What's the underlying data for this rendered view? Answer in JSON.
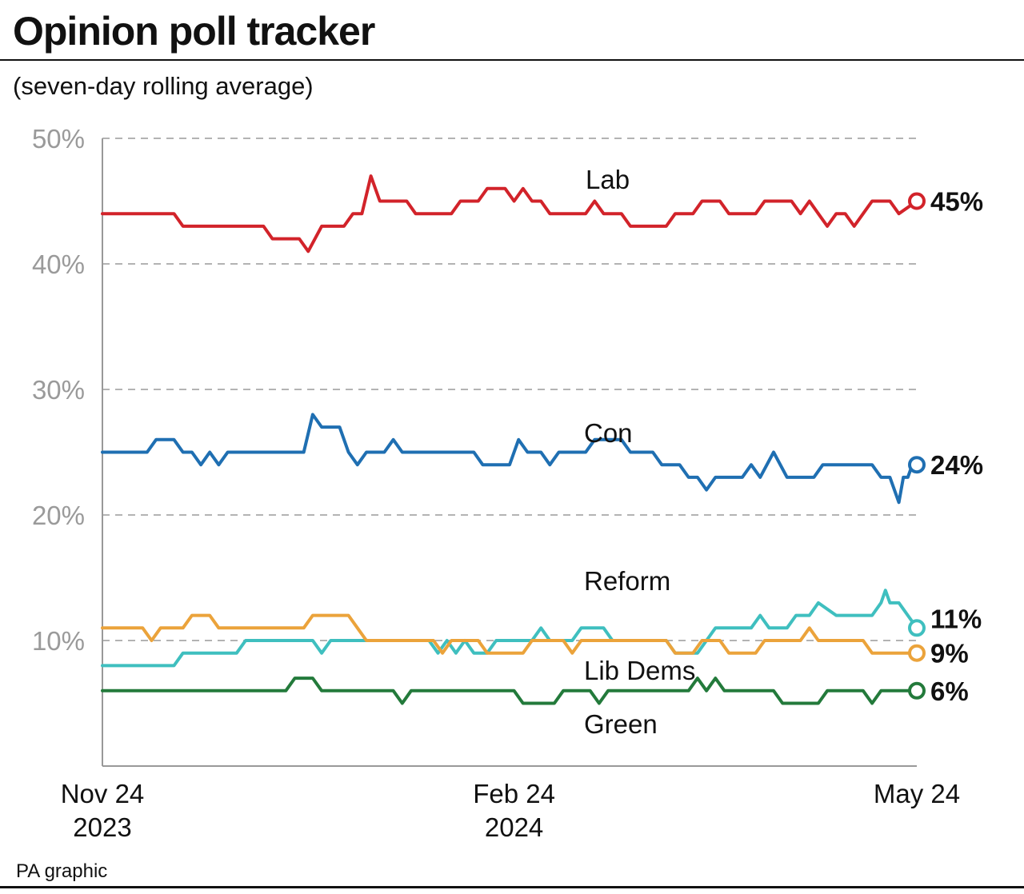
{
  "header": {
    "title": "Opinion poll tracker",
    "subtitle": "(seven-day rolling average)"
  },
  "footer": {
    "source": "PA graphic"
  },
  "chart_data": {
    "type": "line",
    "title": "Opinion poll tracker",
    "subtitle": "(seven-day rolling average)",
    "xlabel": "",
    "ylabel": "",
    "ylim": [
      0,
      50
    ],
    "xlim": [
      "2023-11-24",
      "2024-05-24"
    ],
    "grid": true,
    "yticks": [
      {
        "value": 10,
        "label": "10%"
      },
      {
        "value": 20,
        "label": "20%"
      },
      {
        "value": 30,
        "label": "30%"
      },
      {
        "value": 40,
        "label": "40%"
      },
      {
        "value": 50,
        "label": "50%"
      }
    ],
    "xticks": [
      {
        "date": "2023-11-24",
        "lines": [
          "Nov 24",
          "2023"
        ]
      },
      {
        "date": "2024-02-24",
        "lines": [
          "Feb 24",
          "2024"
        ]
      },
      {
        "date": "2024-05-24",
        "lines": [
          "May 24"
        ]
      }
    ],
    "series": [
      {
        "name": "Lab",
        "color": "#d2232a",
        "end_label": "45%",
        "points": [
          [
            "2023-11-24",
            44
          ],
          [
            "2023-12-10",
            44
          ],
          [
            "2023-12-12",
            43
          ],
          [
            "2023-12-30",
            43
          ],
          [
            "2024-01-01",
            42
          ],
          [
            "2024-01-07",
            42
          ],
          [
            "2024-01-09",
            41
          ],
          [
            "2024-01-12",
            43
          ],
          [
            "2024-01-17",
            43
          ],
          [
            "2024-01-19",
            44
          ],
          [
            "2024-01-21",
            44
          ],
          [
            "2024-01-23",
            47
          ],
          [
            "2024-01-25",
            45
          ],
          [
            "2024-01-31",
            45
          ],
          [
            "2024-02-02",
            44
          ],
          [
            "2024-02-10",
            44
          ],
          [
            "2024-02-12",
            45
          ],
          [
            "2024-02-16",
            45
          ],
          [
            "2024-02-18",
            46
          ],
          [
            "2024-02-22",
            46
          ],
          [
            "2024-02-24",
            45
          ],
          [
            "2024-02-26",
            46
          ],
          [
            "2024-02-28",
            45
          ],
          [
            "2024-03-01",
            45
          ],
          [
            "2024-03-03",
            44
          ],
          [
            "2024-03-11",
            44
          ],
          [
            "2024-03-13",
            45
          ],
          [
            "2024-03-15",
            44
          ],
          [
            "2024-03-19",
            44
          ],
          [
            "2024-03-21",
            43
          ],
          [
            "2024-03-29",
            43
          ],
          [
            "2024-03-31",
            44
          ],
          [
            "2024-04-04",
            44
          ],
          [
            "2024-04-06",
            45
          ],
          [
            "2024-04-10",
            45
          ],
          [
            "2024-04-12",
            44
          ],
          [
            "2024-04-18",
            44
          ],
          [
            "2024-04-20",
            45
          ],
          [
            "2024-04-26",
            45
          ],
          [
            "2024-04-28",
            44
          ],
          [
            "2024-04-30",
            45
          ],
          [
            "2024-05-02",
            44
          ],
          [
            "2024-05-04",
            43
          ],
          [
            "2024-05-06",
            44
          ],
          [
            "2024-05-08",
            44
          ],
          [
            "2024-05-10",
            43
          ],
          [
            "2024-05-12",
            44
          ],
          [
            "2024-05-14",
            45
          ],
          [
            "2024-05-18",
            45
          ],
          [
            "2024-05-20",
            44
          ],
          [
            "2024-05-24",
            45
          ]
        ]
      },
      {
        "name": "Con",
        "color": "#1f6fb2",
        "end_label": "24%",
        "points": [
          [
            "2023-11-24",
            25
          ],
          [
            "2023-12-04",
            25
          ],
          [
            "2023-12-06",
            26
          ],
          [
            "2023-12-10",
            26
          ],
          [
            "2023-12-12",
            25
          ],
          [
            "2023-12-14",
            25
          ],
          [
            "2023-12-16",
            24
          ],
          [
            "2023-12-18",
            25
          ],
          [
            "2023-12-20",
            24
          ],
          [
            "2023-12-22",
            25
          ],
          [
            "2024-01-08",
            25
          ],
          [
            "2024-01-10",
            28
          ],
          [
            "2024-01-12",
            27
          ],
          [
            "2024-01-16",
            27
          ],
          [
            "2024-01-18",
            25
          ],
          [
            "2024-01-20",
            24
          ],
          [
            "2024-01-22",
            25
          ],
          [
            "2024-01-26",
            25
          ],
          [
            "2024-01-28",
            26
          ],
          [
            "2024-01-30",
            25
          ],
          [
            "2024-02-15",
            25
          ],
          [
            "2024-02-17",
            24
          ],
          [
            "2024-02-23",
            24
          ],
          [
            "2024-02-25",
            26
          ],
          [
            "2024-02-27",
            25
          ],
          [
            "2024-03-01",
            25
          ],
          [
            "2024-03-03",
            24
          ],
          [
            "2024-03-05",
            25
          ],
          [
            "2024-03-11",
            25
          ],
          [
            "2024-03-13",
            26
          ],
          [
            "2024-03-19",
            26
          ],
          [
            "2024-03-21",
            25
          ],
          [
            "2024-03-26",
            25
          ],
          [
            "2024-03-28",
            24
          ],
          [
            "2024-04-01",
            24
          ],
          [
            "2024-04-03",
            23
          ],
          [
            "2024-04-05",
            23
          ],
          [
            "2024-04-07",
            22
          ],
          [
            "2024-04-09",
            23
          ],
          [
            "2024-04-15",
            23
          ],
          [
            "2024-04-17",
            24
          ],
          [
            "2024-04-19",
            23
          ],
          [
            "2024-04-22",
            25
          ],
          [
            "2024-04-25",
            23
          ],
          [
            "2024-05-01",
            23
          ],
          [
            "2024-05-03",
            24
          ],
          [
            "2024-05-14",
            24
          ],
          [
            "2024-05-16",
            23
          ],
          [
            "2024-05-18",
            23
          ],
          [
            "2024-05-20",
            21
          ],
          [
            "2024-05-21",
            23
          ],
          [
            "2024-05-22",
            23
          ],
          [
            "2024-05-23",
            24
          ],
          [
            "2024-05-24",
            24
          ]
        ]
      },
      {
        "name": "Reform",
        "color": "#3fbfbf",
        "end_label": "11%",
        "points": [
          [
            "2023-11-24",
            8
          ],
          [
            "2023-12-10",
            8
          ],
          [
            "2023-12-12",
            9
          ],
          [
            "2023-12-24",
            9
          ],
          [
            "2023-12-26",
            10
          ],
          [
            "2024-01-10",
            10
          ],
          [
            "2024-01-12",
            9
          ],
          [
            "2024-01-14",
            10
          ],
          [
            "2024-02-05",
            10
          ],
          [
            "2024-02-07",
            9
          ],
          [
            "2024-02-09",
            10
          ],
          [
            "2024-02-11",
            9
          ],
          [
            "2024-02-13",
            10
          ],
          [
            "2024-02-15",
            9
          ],
          [
            "2024-02-18",
            9
          ],
          [
            "2024-02-20",
            10
          ],
          [
            "2024-02-28",
            10
          ],
          [
            "2024-03-01",
            11
          ],
          [
            "2024-03-03",
            10
          ],
          [
            "2024-03-08",
            10
          ],
          [
            "2024-03-10",
            11
          ],
          [
            "2024-03-15",
            11
          ],
          [
            "2024-03-17",
            10
          ],
          [
            "2024-03-29",
            10
          ],
          [
            "2024-03-31",
            9
          ],
          [
            "2024-04-05",
            9
          ],
          [
            "2024-04-07",
            10
          ],
          [
            "2024-04-09",
            11
          ],
          [
            "2024-04-17",
            11
          ],
          [
            "2024-04-19",
            12
          ],
          [
            "2024-04-21",
            11
          ],
          [
            "2024-04-25",
            11
          ],
          [
            "2024-04-27",
            12
          ],
          [
            "2024-04-30",
            12
          ],
          [
            "2024-05-02",
            13
          ],
          [
            "2024-05-06",
            12
          ],
          [
            "2024-05-14",
            12
          ],
          [
            "2024-05-16",
            13
          ],
          [
            "2024-05-17",
            14
          ],
          [
            "2024-05-18",
            13
          ],
          [
            "2024-05-20",
            13
          ],
          [
            "2024-05-22",
            12
          ],
          [
            "2024-05-24",
            11
          ]
        ]
      },
      {
        "name": "Lib Dems",
        "color": "#eba33b",
        "end_label": "9%",
        "points": [
          [
            "2023-11-24",
            11
          ],
          [
            "2023-12-03",
            11
          ],
          [
            "2023-12-05",
            10
          ],
          [
            "2023-12-07",
            11
          ],
          [
            "2023-12-12",
            11
          ],
          [
            "2023-12-14",
            12
          ],
          [
            "2023-12-18",
            12
          ],
          [
            "2023-12-20",
            11
          ],
          [
            "2024-01-08",
            11
          ],
          [
            "2024-01-10",
            12
          ],
          [
            "2024-01-18",
            12
          ],
          [
            "2024-01-20",
            11
          ],
          [
            "2024-01-22",
            10
          ],
          [
            "2024-02-06",
            10
          ],
          [
            "2024-02-08",
            9
          ],
          [
            "2024-02-10",
            10
          ],
          [
            "2024-02-16",
            10
          ],
          [
            "2024-02-18",
            9
          ],
          [
            "2024-02-26",
            9
          ],
          [
            "2024-02-28",
            10
          ],
          [
            "2024-03-06",
            10
          ],
          [
            "2024-03-08",
            9
          ],
          [
            "2024-03-10",
            10
          ],
          [
            "2024-03-29",
            10
          ],
          [
            "2024-03-31",
            9
          ],
          [
            "2024-04-04",
            9
          ],
          [
            "2024-04-06",
            10
          ],
          [
            "2024-04-10",
            10
          ],
          [
            "2024-04-12",
            9
          ],
          [
            "2024-04-18",
            9
          ],
          [
            "2024-04-20",
            10
          ],
          [
            "2024-04-28",
            10
          ],
          [
            "2024-04-30",
            11
          ],
          [
            "2024-05-02",
            10
          ],
          [
            "2024-05-12",
            10
          ],
          [
            "2024-05-14",
            9
          ],
          [
            "2024-05-24",
            9
          ]
        ]
      },
      {
        "name": "Green",
        "color": "#237a3b",
        "end_label": "6%",
        "points": [
          [
            "2023-11-24",
            6
          ],
          [
            "2024-01-04",
            6
          ],
          [
            "2024-01-06",
            7
          ],
          [
            "2024-01-10",
            7
          ],
          [
            "2024-01-12",
            6
          ],
          [
            "2024-01-28",
            6
          ],
          [
            "2024-01-30",
            5
          ],
          [
            "2024-02-01",
            6
          ],
          [
            "2024-02-24",
            6
          ],
          [
            "2024-02-26",
            5
          ],
          [
            "2024-03-04",
            5
          ],
          [
            "2024-03-06",
            6
          ],
          [
            "2024-03-12",
            6
          ],
          [
            "2024-03-14",
            5
          ],
          [
            "2024-03-16",
            6
          ],
          [
            "2024-04-03",
            6
          ],
          [
            "2024-04-05",
            7
          ],
          [
            "2024-04-07",
            6
          ],
          [
            "2024-04-09",
            7
          ],
          [
            "2024-04-11",
            6
          ],
          [
            "2024-04-22",
            6
          ],
          [
            "2024-04-24",
            5
          ],
          [
            "2024-05-02",
            5
          ],
          [
            "2024-05-04",
            6
          ],
          [
            "2024-05-12",
            6
          ],
          [
            "2024-05-14",
            5
          ],
          [
            "2024-05-16",
            6
          ],
          [
            "2024-05-24",
            6
          ]
        ]
      }
    ]
  }
}
